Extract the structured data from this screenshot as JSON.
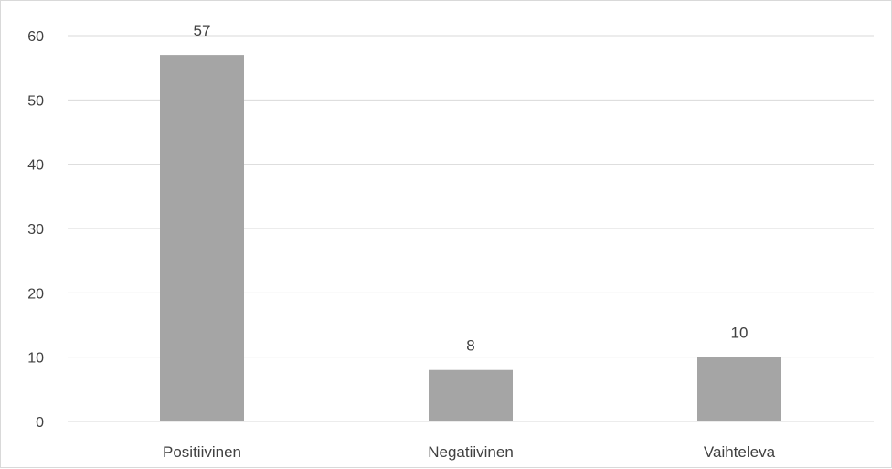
{
  "chart_data": {
    "type": "bar",
    "categories": [
      "Positiivinen",
      "Negatiivinen",
      "Vaihteleva"
    ],
    "values": [
      57,
      8,
      10
    ],
    "data_labels": [
      "57",
      "8",
      "10"
    ],
    "ylim": [
      0,
      60
    ],
    "yticks": [
      0,
      10,
      20,
      30,
      40,
      50,
      60
    ],
    "grid": true,
    "legend": "none",
    "title": "",
    "xlabel": "",
    "ylabel": "",
    "colors": {
      "bar": "#a5a5a5",
      "grid": "#d9d9d9",
      "text": "#404040"
    }
  }
}
